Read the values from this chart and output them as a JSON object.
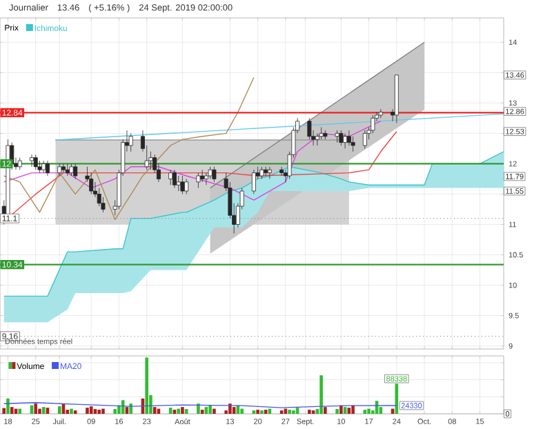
{
  "chart_data": [
    {
      "type": "candlestick",
      "title": "Journalier",
      "subtitle": "24 Sept. 2019 02:00:00",
      "legend_title": "Prix",
      "legend": "top left",
      "grid": true,
      "tick_labels": "y",
      "xlim": [
        "2019-06-16",
        "2019-10-21"
      ],
      "ylim": [
        8.95,
        14.4
      ],
      "xticks": [
        {
          "value": "2019-06-18",
          "label": null
        },
        {
          "value": "2019-06-25",
          "label": null
        },
        {
          "value": "2019-07-01",
          "label": null
        },
        {
          "value": "2019-07-09",
          "label": null
        },
        {
          "value": "2019-07-16",
          "label": null
        },
        {
          "value": "2019-07-23",
          "label": null
        },
        {
          "value": "2019-08-01",
          "label": null
        },
        {
          "value": "2019-08-13",
          "label": null
        },
        {
          "value": "2019-08-20",
          "label": null
        },
        {
          "value": "2019-08-27",
          "label": null
        },
        {
          "value": "2019-09-01",
          "label": null
        },
        {
          "value": "2019-09-10",
          "label": null
        },
        {
          "value": "2019-09-17",
          "label": null
        },
        {
          "value": "2019-09-24",
          "label": null
        },
        {
          "value": "2019-10-01",
          "label": null
        },
        {
          "value": "2019-10-08",
          "label": null
        },
        {
          "value": "2019-10-15",
          "label": null
        }
      ],
      "yticks": [
        9,
        9.5,
        10,
        10.5,
        11,
        {
          "value": 11.5,
          "label": null
        },
        12,
        {
          "value": 12.5,
          "label": null
        },
        13,
        {
          "value": 13.5,
          "label": null
        },
        14
      ],
      "x": [
        "2019-06-17",
        "2019-06-18",
        "2019-06-19",
        "2019-06-20",
        "2019-06-21",
        "2019-06-24",
        "2019-06-25",
        "2019-06-26",
        "2019-06-27",
        "2019-06-28",
        "2019-07-01",
        "2019-07-02",
        "2019-07-03",
        "2019-07-04",
        "2019-07-05",
        "2019-07-08",
        "2019-07-09",
        "2019-07-10",
        "2019-07-11",
        "2019-07-12",
        "2019-07-15",
        "2019-07-16",
        "2019-07-17",
        "2019-07-18",
        "2019-07-19",
        "2019-07-22",
        "2019-07-23",
        "2019-07-24",
        "2019-07-25",
        "2019-07-26",
        "2019-07-29",
        "2019-07-30",
        "2019-07-31",
        "2019-08-01",
        "2019-08-02",
        "2019-08-05",
        "2019-08-06",
        "2019-08-07",
        "2019-08-08",
        "2019-08-09",
        "2019-08-12",
        "2019-08-13",
        "2019-08-14",
        "2019-08-15",
        "2019-08-16",
        "2019-08-19",
        "2019-08-20",
        "2019-08-21",
        "2019-08-22",
        "2019-08-23",
        "2019-08-26",
        "2019-08-27",
        "2019-08-28",
        "2019-08-29",
        "2019-08-30",
        "2019-09-02",
        "2019-09-03",
        "2019-09-04",
        "2019-09-05",
        "2019-09-06",
        "2019-09-09",
        "2019-09-10",
        "2019-09-11",
        "2019-09-12",
        "2019-09-13",
        "2019-09-16",
        "2019-09-17",
        "2019-09-18",
        "2019-09-19",
        "2019-09-20",
        "2019-09-23",
        "2019-09-24"
      ],
      "ohlc": [
        [
          11.3,
          11.4,
          11.0,
          11.1
        ],
        [
          11.1,
          12.4,
          11.1,
          12.3
        ],
        [
          12.3,
          12.35,
          11.9,
          12.0
        ],
        [
          12.0,
          12.1,
          11.9,
          11.95
        ],
        [
          11.95,
          12.1,
          11.9,
          12.05
        ],
        [
          12.05,
          12.15,
          11.95,
          12.1
        ],
        [
          12.1,
          12.15,
          11.9,
          11.95
        ],
        [
          11.95,
          12.05,
          11.85,
          11.9
        ],
        [
          11.9,
          12.05,
          11.85,
          12.0
        ],
        [
          12.0,
          12.05,
          11.8,
          11.85
        ],
        [
          11.85,
          12.0,
          11.8,
          11.95
        ],
        [
          11.95,
          12.0,
          11.85,
          11.9
        ],
        [
          11.9,
          12.0,
          11.8,
          11.85
        ],
        [
          11.85,
          12.0,
          11.8,
          11.95
        ],
        [
          11.95,
          12.0,
          11.75,
          11.8
        ],
        [
          11.8,
          11.95,
          11.7,
          11.75
        ],
        [
          11.75,
          11.85,
          11.5,
          11.55
        ],
        [
          11.55,
          11.7,
          11.45,
          11.5
        ],
        [
          11.5,
          11.6,
          11.3,
          11.35
        ],
        [
          11.35,
          11.45,
          11.2,
          11.25
        ],
        [
          11.25,
          11.4,
          11.15,
          11.3
        ],
        [
          11.3,
          11.9,
          11.25,
          11.85
        ],
        [
          11.85,
          12.4,
          11.8,
          12.35
        ],
        [
          12.35,
          12.55,
          12.2,
          12.3
        ],
        [
          12.3,
          12.5,
          12.2,
          12.45
        ],
        [
          12.45,
          12.55,
          12.2,
          12.25
        ],
        [
          11.95,
          12.3,
          11.9,
          12.05
        ],
        [
          12.05,
          12.2,
          11.9,
          12.1
        ],
        [
          12.1,
          12.15,
          11.85,
          11.9
        ],
        [
          11.9,
          12.0,
          11.7,
          11.75
        ],
        [
          11.75,
          11.9,
          11.65,
          11.85
        ],
        [
          11.85,
          11.9,
          11.6,
          11.65
        ],
        [
          11.65,
          11.8,
          11.55,
          11.7
        ],
        [
          11.7,
          11.8,
          11.5,
          11.55
        ],
        [
          11.55,
          11.75,
          11.5,
          11.7
        ],
        [
          11.7,
          11.85,
          11.6,
          11.8
        ],
        [
          11.8,
          11.9,
          11.7,
          11.75
        ],
        [
          11.75,
          11.85,
          11.65,
          11.8
        ],
        [
          11.8,
          11.95,
          11.75,
          11.9
        ],
        [
          11.9,
          11.95,
          11.7,
          11.75
        ],
        [
          11.75,
          11.85,
          11.55,
          11.6
        ],
        [
          11.6,
          11.7,
          11.1,
          11.15
        ],
        [
          11.15,
          11.35,
          10.85,
          11.0
        ],
        [
          11.0,
          11.35,
          10.95,
          11.3
        ],
        [
          11.3,
          11.6,
          11.25,
          11.55
        ],
        [
          11.55,
          11.9,
          11.5,
          11.85
        ],
        [
          11.85,
          11.95,
          11.75,
          11.8
        ],
        [
          11.8,
          11.95,
          11.75,
          11.9
        ],
        [
          11.9,
          11.95,
          11.8,
          11.85
        ],
        [
          11.85,
          11.95,
          11.75,
          11.9
        ],
        [
          11.9,
          11.95,
          11.8,
          11.85
        ],
        [
          11.85,
          11.9,
          11.7,
          11.8
        ],
        [
          11.8,
          12.2,
          11.75,
          12.15
        ],
        [
          12.15,
          12.6,
          12.1,
          12.55
        ],
        [
          12.55,
          12.75,
          12.5,
          12.7
        ],
        [
          12.7,
          12.75,
          12.4,
          12.45
        ],
        [
          12.45,
          12.55,
          12.3,
          12.4
        ],
        [
          12.4,
          12.5,
          12.3,
          12.45
        ],
        [
          12.45,
          12.6,
          12.4,
          12.5
        ],
        [
          12.5,
          12.55,
          12.4,
          12.45
        ],
        [
          12.45,
          12.55,
          12.35,
          12.5
        ],
        [
          12.5,
          12.55,
          12.3,
          12.35
        ],
        [
          12.35,
          12.5,
          12.25,
          12.45
        ],
        [
          12.45,
          12.55,
          12.3,
          12.35
        ],
        [
          12.35,
          12.45,
          12.2,
          12.3
        ],
        [
          12.3,
          12.55,
          12.25,
          12.5
        ],
        [
          12.5,
          12.6,
          12.4,
          12.55
        ],
        [
          12.55,
          12.8,
          12.5,
          12.75
        ],
        [
          12.75,
          12.85,
          12.7,
          12.8
        ],
        [
          12.8,
          12.9,
          12.75,
          12.85
        ],
        [
          12.85,
          12.9,
          12.7,
          12.8
        ],
        [
          12.8,
          13.46,
          12.67,
          13.46
        ]
      ],
      "series": [
        {
          "type": "line",
          "color": "#9a9a9a",
          "x": [
            "2019-06-30",
            "2019-09-12"
          ],
          "values": [
            12.39,
            12.39
          ],
          "upper": [
            12.39,
            12.39
          ],
          "lower": [
            11.0,
            11.0
          ]
        },
        {
          "type": "line",
          "color": "#808080",
          "x": [
            "2019-08-08",
            "2019-10-01"
          ],
          "values": [
            11.6,
            14.0
          ],
          "upper": [
            11.6,
            14.0
          ],
          "lower": [
            10.52,
            12.89
          ]
        },
        {
          "type": "line",
          "name": "Ichimoku",
          "color": "#3cc3cc",
          "x": [
            "2019-06-17",
            "2019-06-28",
            "2019-07-03",
            "2019-07-05",
            "2019-07-15",
            "2019-07-17",
            "2019-07-19",
            "2019-07-24",
            "2019-08-01",
            "2019-08-02",
            "2019-08-09",
            "2019-08-13",
            "2019-08-16",
            "2019-08-20",
            "2019-08-23",
            "2019-08-28",
            "2019-09-05",
            "2019-09-10",
            "2019-09-12",
            "2019-09-17",
            "2019-09-20",
            "2019-10-01",
            "2019-10-03",
            "2019-10-15",
            "2019-10-21"
          ],
          "values": [
            9.82,
            9.82,
            10.55,
            10.55,
            10.6,
            10.6,
            11.1,
            11.1,
            11.2,
            11.2,
            11.4,
            11.55,
            11.6,
            11.75,
            11.8,
            11.95,
            11.85,
            11.75,
            11.7,
            11.65,
            11.65,
            11.65,
            12.0,
            12.0,
            12.2
          ],
          "upper": [
            9.82,
            9.82,
            10.55,
            10.55,
            10.6,
            10.6,
            11.1,
            11.1,
            11.2,
            11.2,
            11.4,
            11.55,
            11.6,
            11.75,
            11.8,
            11.95,
            11.85,
            11.75,
            11.7,
            11.65,
            11.65,
            11.65,
            12.0,
            12.0,
            12.2
          ],
          "lower": [
            9.39,
            9.39,
            9.6,
            9.87,
            9.87,
            9.87,
            9.9,
            10.25,
            10.25,
            10.25,
            10.95,
            10.95,
            10.95,
            11.2,
            11.55,
            11.55,
            11.55,
            11.55,
            11.55,
            11.6,
            11.6,
            11.6,
            11.6,
            11.6,
            11.6
          ]
        },
        {
          "type": "line",
          "color": "#66c8ee",
          "x": [
            "2019-06-30",
            "2019-10-21"
          ],
          "values": [
            12.39,
            12.82
          ]
        },
        {
          "type": "line",
          "color": "#ee4444",
          "x": [
            "2019-06-17",
            "2019-06-25",
            "2019-07-02",
            "2019-08-12",
            "2019-08-20",
            "2019-09-12",
            "2019-09-17",
            "2019-09-20",
            "2019-09-24"
          ],
          "values": [
            11.05,
            11.5,
            11.85,
            11.85,
            11.8,
            11.85,
            11.9,
            12.2,
            12.53
          ]
        },
        {
          "type": "line",
          "color": "#dd44dd",
          "x": [
            "2019-06-17",
            "2019-06-24",
            "2019-07-03",
            "2019-07-09",
            "2019-07-15",
            "2019-07-19",
            "2019-07-26",
            "2019-08-02",
            "2019-08-13",
            "2019-08-19",
            "2019-08-27",
            "2019-08-30",
            "2019-09-05",
            "2019-09-12",
            "2019-09-20"
          ],
          "values": [
            11.7,
            11.85,
            11.85,
            11.6,
            11.75,
            11.95,
            11.95,
            11.8,
            11.6,
            11.4,
            11.7,
            12.2,
            12.5,
            12.45,
            12.7
          ]
        },
        {
          "type": "line",
          "color": "#b08a5a",
          "x": [
            "2019-06-17",
            "2019-06-21",
            "2019-06-26",
            "2019-07-01",
            "2019-07-05",
            "2019-07-10",
            "2019-07-15",
            "2019-07-22",
            "2019-07-29",
            "2019-08-01",
            "2019-08-06",
            "2019-08-12",
            "2019-08-15",
            "2019-08-19"
          ],
          "values": [
            11.8,
            11.7,
            11.2,
            11.85,
            11.5,
            11.9,
            11.08,
            11.8,
            12.3,
            12.4,
            12.45,
            12.5,
            12.85,
            13.42
          ]
        }
      ],
      "ref_lines": [
        {
          "axis": "y",
          "value": 12.84,
          "label": "12.84",
          "color": "#ee2222"
        },
        {
          "axis": "y",
          "value": 12,
          "label": "12",
          "color": "#339933"
        },
        {
          "axis": "y",
          "value": 10.34,
          "label": "10.34",
          "color": "#339933"
        },
        {
          "axis": "y",
          "value": 11.1,
          "label": "11.1",
          "color": "#777777",
          "line_style": "dotted"
        },
        {
          "axis": "y",
          "value": 9.16,
          "label": "9.16",
          "color": "#777777",
          "line_style": "dotted"
        }
      ],
      "annotations": [
        "13.46",
        "( +5.16% )",
        {
          "text": "13.46",
          "y": 13.46
        },
        {
          "text": "12.86",
          "y": 12.86
        },
        {
          "text": "12.53",
          "y": 12.53
        },
        {
          "text": "11.79",
          "y": 11.79
        },
        {
          "text": "11.55",
          "y": 11.55
        }
      ]
    },
    {
      "type": "bar",
      "legend": "top left",
      "grid": true,
      "xlim": [
        "2019-06-16",
        "2019-10-21"
      ],
      "ylim": [
        0,
        170000
      ],
      "tick_labels": "x",
      "xticks": [
        {
          "value": "2019-06-18",
          "label": "18"
        },
        {
          "value": "2019-06-25",
          "label": "25"
        },
        {
          "value": "2019-07-01",
          "label": "Juil."
        },
        {
          "value": "2019-07-09",
          "label": "09"
        },
        {
          "value": "2019-07-16",
          "label": "16"
        },
        {
          "value": "2019-07-23",
          "label": "23"
        },
        {
          "value": "2019-08-01",
          "label": "Août"
        },
        {
          "value": "2019-08-13",
          "label": "13"
        },
        {
          "value": "2019-08-20",
          "label": "20"
        },
        {
          "value": "2019-08-27",
          "label": "27"
        },
        {
          "value": "2019-09-01",
          "label": "Sept."
        },
        {
          "value": "2019-09-10",
          "label": "10"
        },
        {
          "value": "2019-09-17",
          "label": "17"
        },
        {
          "value": "2019-09-24",
          "label": "24"
        },
        {
          "value": "2019-10-01",
          "label": "Oct."
        },
        {
          "value": "2019-10-08",
          "label": "08"
        },
        {
          "value": "2019-10-15",
          "label": "15"
        }
      ],
      "x": [
        "2019-06-17",
        "2019-06-18",
        "2019-06-19",
        "2019-06-20",
        "2019-06-21",
        "2019-06-24",
        "2019-06-25",
        "2019-06-26",
        "2019-06-27",
        "2019-06-28",
        "2019-07-01",
        "2019-07-02",
        "2019-07-03",
        "2019-07-04",
        "2019-07-05",
        "2019-07-08",
        "2019-07-09",
        "2019-07-10",
        "2019-07-11",
        "2019-07-12",
        "2019-07-15",
        "2019-07-16",
        "2019-07-17",
        "2019-07-18",
        "2019-07-19",
        "2019-07-22",
        "2019-07-23",
        "2019-07-24",
        "2019-07-25",
        "2019-07-26",
        "2019-07-29",
        "2019-07-30",
        "2019-07-31",
        "2019-08-01",
        "2019-08-02",
        "2019-08-05",
        "2019-08-06",
        "2019-08-07",
        "2019-08-08",
        "2019-08-09",
        "2019-08-12",
        "2019-08-13",
        "2019-08-14",
        "2019-08-15",
        "2019-08-16",
        "2019-08-19",
        "2019-08-20",
        "2019-08-21",
        "2019-08-22",
        "2019-08-23",
        "2019-08-26",
        "2019-08-27",
        "2019-08-28",
        "2019-08-29",
        "2019-08-30",
        "2019-09-02",
        "2019-09-03",
        "2019-09-04",
        "2019-09-05",
        "2019-09-06",
        "2019-09-09",
        "2019-09-10",
        "2019-09-11",
        "2019-09-12",
        "2019-09-13",
        "2019-09-16",
        "2019-09-17",
        "2019-09-18",
        "2019-09-19",
        "2019-09-20",
        "2019-09-23",
        "2019-09-24"
      ],
      "series": [
        {
          "name": "Volume",
          "values": [
            17000,
            45000,
            20000,
            15000,
            15000,
            25000,
            30000,
            15000,
            20000,
            18000,
            22000,
            30000,
            12000,
            15000,
            10000,
            18000,
            22000,
            14000,
            12000,
            15000,
            14000,
            25000,
            40000,
            20000,
            30000,
            45000,
            165000,
            55000,
            20000,
            15000,
            18000,
            12000,
            15000,
            20000,
            14000,
            30000,
            12000,
            20000,
            25000,
            15000,
            10000,
            30000,
            20000,
            25000,
            15000,
            10000,
            12000,
            10000,
            12000,
            15000,
            10000,
            15000,
            12000,
            10000,
            18000,
            12000,
            10000,
            14000,
            113000,
            20000,
            14000,
            25000,
            20000,
            18000,
            25000,
            12000,
            15000,
            10000,
            38000,
            20000,
            15000,
            88338
          ],
          "colors": [
            "#aa2222",
            "#33bb33",
            "#aa2222",
            "#aa2222",
            "#33bb33",
            "#33bb33",
            "#aa2222",
            "#aa2222",
            "#33bb33",
            "#aa2222",
            "#33bb33",
            "#aa2222",
            "#aa2222",
            "#33bb33",
            "#aa2222",
            "#aa2222",
            "#aa2222",
            "#aa2222",
            "#aa2222",
            "#aa2222",
            "#33bb33",
            "#33bb33",
            "#33bb33",
            "#aa2222",
            "#33bb33",
            "#aa2222",
            "#33bb33",
            "#33bb33",
            "#aa2222",
            "#aa2222",
            "#33bb33",
            "#aa2222",
            "#33bb33",
            "#aa2222",
            "#33bb33",
            "#33bb33",
            "#aa2222",
            "#33bb33",
            "#33bb33",
            "#aa2222",
            "#aa2222",
            "#aa2222",
            "#aa2222",
            "#33bb33",
            "#33bb33",
            "#33bb33",
            "#aa2222",
            "#33bb33",
            "#aa2222",
            "#33bb33",
            "#aa2222",
            "#aa2222",
            "#33bb33",
            "#33bb33",
            "#33bb33",
            "#aa2222",
            "#aa2222",
            "#33bb33",
            "#33bb33",
            "#aa2222",
            "#33bb33",
            "#aa2222",
            "#33bb33",
            "#aa2222",
            "#aa2222",
            "#33bb33",
            "#33bb33",
            "#33bb33",
            "#33bb33",
            "#33bb33",
            "#aa2222",
            "#33bb33"
          ],
          "value_labels": [
            null,
            null,
            null,
            null,
            null,
            null,
            null,
            null,
            null,
            null,
            null,
            null,
            null,
            null,
            null,
            null,
            null,
            null,
            null,
            null,
            null,
            null,
            null,
            null,
            null,
            null,
            null,
            null,
            null,
            null,
            null,
            null,
            null,
            null,
            null,
            null,
            null,
            null,
            null,
            null,
            null,
            null,
            null,
            null,
            null,
            null,
            null,
            null,
            null,
            null,
            null,
            null,
            null,
            null,
            null,
            null,
            null,
            null,
            null,
            null,
            null,
            null,
            null,
            null,
            null,
            null,
            null,
            null,
            null,
            null,
            null,
            "88338"
          ]
        },
        {
          "name": "MA20",
          "type": "line",
          "color": "#4455ee",
          "x": [
            "2019-06-17",
            "2019-06-25",
            "2019-07-05",
            "2019-07-19",
            "2019-08-01",
            "2019-08-16",
            "2019-08-26",
            "2019-09-05",
            "2019-09-12",
            "2019-09-24"
          ],
          "values": [
            30000,
            33000,
            28000,
            22000,
            26000,
            24000,
            18000,
            22000,
            24000,
            24330
          ],
          "value_labels": [
            null,
            null,
            null,
            null,
            null,
            null,
            null,
            null,
            null,
            "24330"
          ]
        }
      ],
      "annotations": [
        "Données temps réel",
        {
          "text": "0",
          "y": 0
        }
      ]
    }
  ]
}
